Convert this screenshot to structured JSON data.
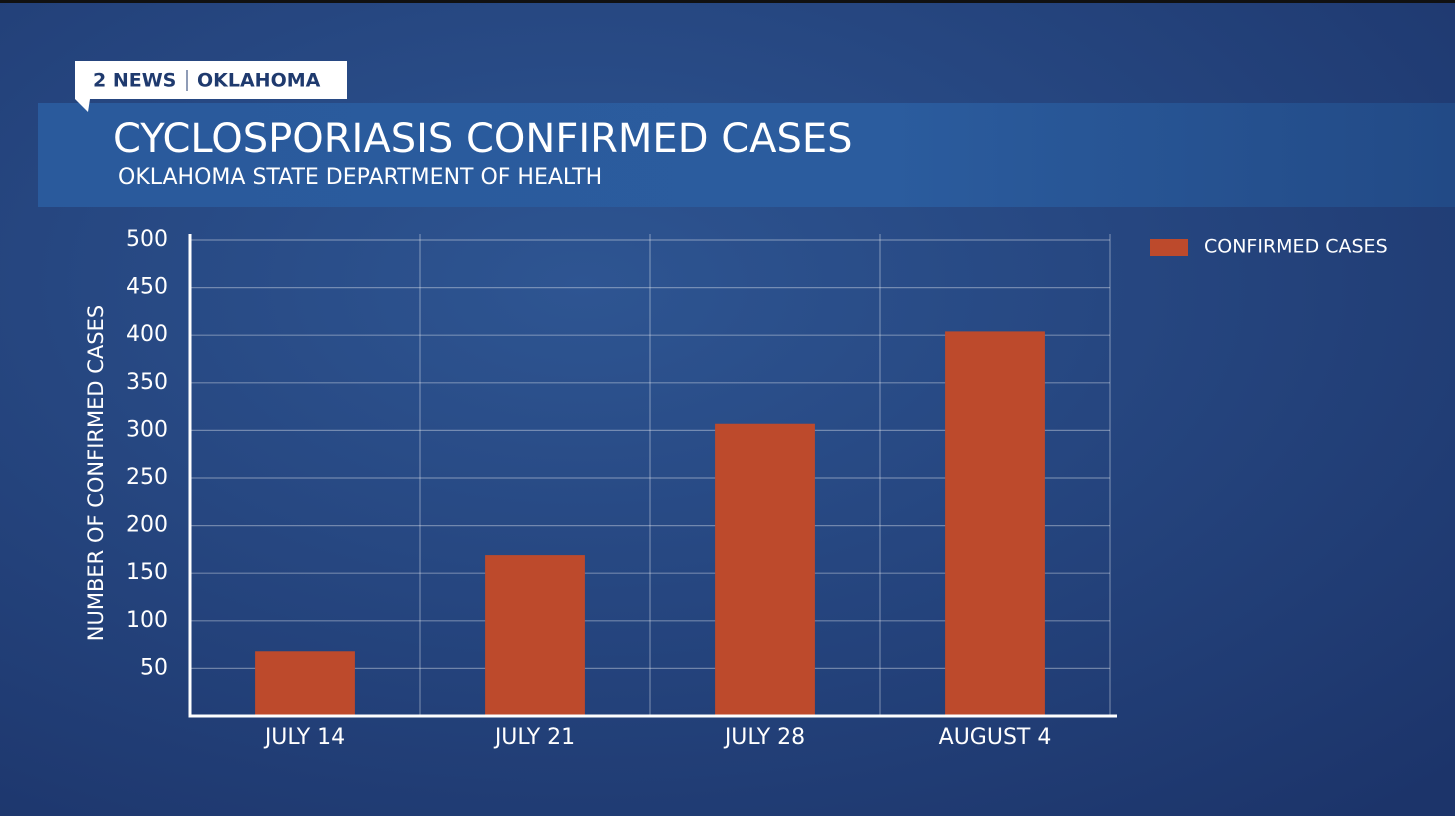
{
  "header": {
    "brand": "2 NEWS",
    "region": "OKLAHOMA"
  },
  "chart_data": {
    "type": "bar",
    "title": "CYCLOSPORIASIS CONFIRMED CASES",
    "subtitle": "OKLAHOMA STATE DEPARTMENT OF HEALTH",
    "y_label": "NUMBER OF CONFIRMED CASES",
    "categories": [
      "JULY 14",
      "JULY 21",
      "JULY 28",
      "AUGUST 4"
    ],
    "series": [
      {
        "name": "CONFIRMED CASES",
        "color": "#bd4a2c",
        "values": [
          68,
          169,
          307,
          404
        ]
      }
    ],
    "ylim": [
      0,
      500
    ],
    "yticks": [
      50,
      100,
      150,
      200,
      250,
      300,
      350,
      400,
      450,
      500
    ],
    "grid": true,
    "legend": "top-right"
  }
}
